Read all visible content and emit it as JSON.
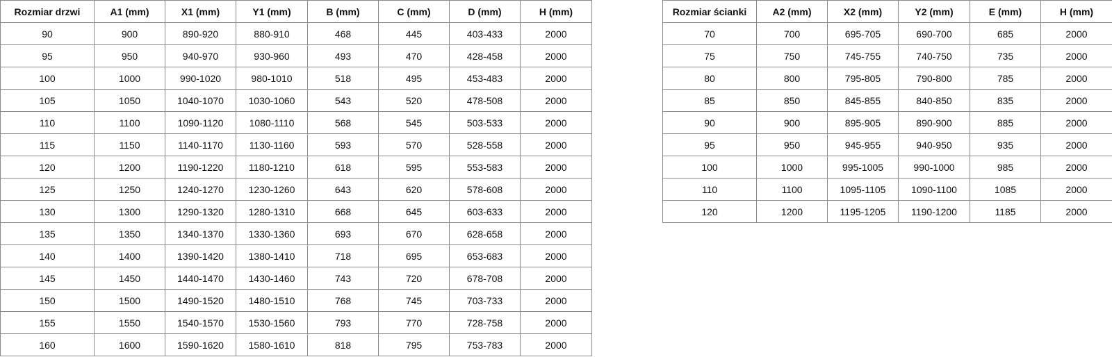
{
  "doors_table": {
    "headers": [
      "Rozmiar drzwi",
      "A1 (mm)",
      "X1 (mm)",
      "Y1 (mm)",
      "B (mm)",
      "C (mm)",
      "D (mm)",
      "H (mm)"
    ],
    "rows": [
      [
        "90",
        "900",
        "890-920",
        "880-910",
        "468",
        "445",
        "403-433",
        "2000"
      ],
      [
        "95",
        "950",
        "940-970",
        "930-960",
        "493",
        "470",
        "428-458",
        "2000"
      ],
      [
        "100",
        "1000",
        "990-1020",
        "980-1010",
        "518",
        "495",
        "453-483",
        "2000"
      ],
      [
        "105",
        "1050",
        "1040-1070",
        "1030-1060",
        "543",
        "520",
        "478-508",
        "2000"
      ],
      [
        "110",
        "1100",
        "1090-1120",
        "1080-1110",
        "568",
        "545",
        "503-533",
        "2000"
      ],
      [
        "115",
        "1150",
        "1140-1170",
        "1130-1160",
        "593",
        "570",
        "528-558",
        "2000"
      ],
      [
        "120",
        "1200",
        "1190-1220",
        "1180-1210",
        "618",
        "595",
        "553-583",
        "2000"
      ],
      [
        "125",
        "1250",
        "1240-1270",
        "1230-1260",
        "643",
        "620",
        "578-608",
        "2000"
      ],
      [
        "130",
        "1300",
        "1290-1320",
        "1280-1310",
        "668",
        "645",
        "603-633",
        "2000"
      ],
      [
        "135",
        "1350",
        "1340-1370",
        "1330-1360",
        "693",
        "670",
        "628-658",
        "2000"
      ],
      [
        "140",
        "1400",
        "1390-1420",
        "1380-1410",
        "718",
        "695",
        "653-683",
        "2000"
      ],
      [
        "145",
        "1450",
        "1440-1470",
        "1430-1460",
        "743",
        "720",
        "678-708",
        "2000"
      ],
      [
        "150",
        "1500",
        "1490-1520",
        "1480-1510",
        "768",
        "745",
        "703-733",
        "2000"
      ],
      [
        "155",
        "1550",
        "1540-1570",
        "1530-1560",
        "793",
        "770",
        "728-758",
        "2000"
      ],
      [
        "160",
        "1600",
        "1590-1620",
        "1580-1610",
        "818",
        "795",
        "753-783",
        "2000"
      ]
    ]
  },
  "walls_table": {
    "headers": [
      "Rozmiar ścianki",
      "A2 (mm)",
      "X2 (mm)",
      "Y2 (mm)",
      "E (mm)",
      "H (mm)"
    ],
    "rows": [
      [
        "70",
        "700",
        "695-705",
        "690-700",
        "685",
        "2000"
      ],
      [
        "75",
        "750",
        "745-755",
        "740-750",
        "735",
        "2000"
      ],
      [
        "80",
        "800",
        "795-805",
        "790-800",
        "785",
        "2000"
      ],
      [
        "85",
        "850",
        "845-855",
        "840-850",
        "835",
        "2000"
      ],
      [
        "90",
        "900",
        "895-905",
        "890-900",
        "885",
        "2000"
      ],
      [
        "95",
        "950",
        "945-955",
        "940-950",
        "935",
        "2000"
      ],
      [
        "100",
        "1000",
        "995-1005",
        "990-1000",
        "985",
        "2000"
      ],
      [
        "110",
        "1100",
        "1095-1105",
        "1090-1100",
        "1085",
        "2000"
      ],
      [
        "120",
        "1200",
        "1195-1205",
        "1190-1200",
        "1185",
        "2000"
      ]
    ]
  }
}
